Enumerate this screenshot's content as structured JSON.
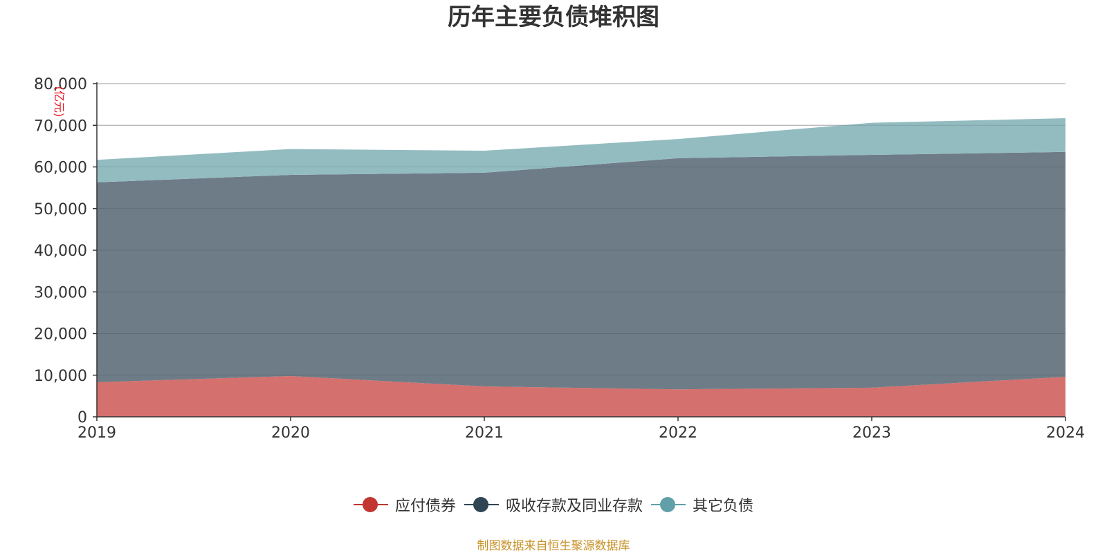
{
  "chart_data": {
    "type": "area",
    "stacked": true,
    "title": "历年主要负债堆积图",
    "unit_label": "(亿元)",
    "x": [
      "2019",
      "2020",
      "2021",
      "2022",
      "2023",
      "2024"
    ],
    "ylim": [
      0,
      80000
    ],
    "yticks": [
      0,
      10000,
      20000,
      30000,
      40000,
      50000,
      60000,
      70000,
      80000
    ],
    "ytick_labels": [
      "0",
      "10,000",
      "20,000",
      "30,000",
      "40,000",
      "50,000",
      "60,000",
      "70,000",
      "80,000"
    ],
    "grid": true,
    "legend_position": "bottom",
    "series": [
      {
        "name": "应付债券",
        "color": "#c23531",
        "area_color": "#d4706d",
        "values": [
          8300,
          9800,
          7300,
          6600,
          7000,
          9600
        ]
      },
      {
        "name": "吸收存款及同业存款",
        "color": "#2f4554",
        "area_color": "#6e7c87",
        "values": [
          48000,
          48300,
          51300,
          55500,
          55900,
          54000
        ]
      },
      {
        "name": "其它负债",
        "color": "#61a0a8",
        "area_color": "#93bcc1",
        "values": [
          5400,
          6200,
          5300,
          4600,
          7700,
          8100
        ]
      }
    ],
    "source": "制图数据来自恒生聚源数据库"
  }
}
